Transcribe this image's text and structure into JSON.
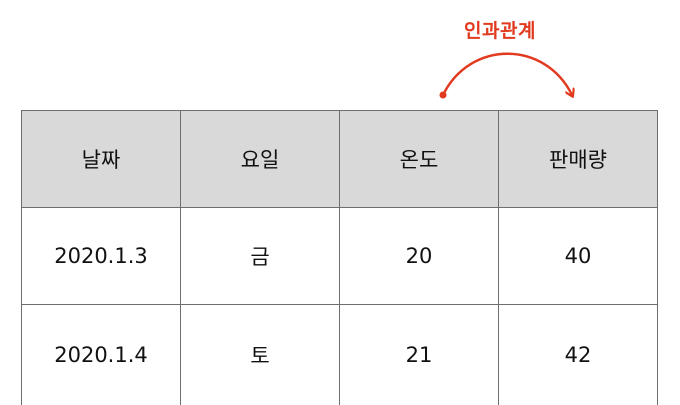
{
  "annotation": {
    "label": "인과관계",
    "color": "#e23a1f"
  },
  "table": {
    "headers": [
      "날짜",
      "요일",
      "온도",
      "판매량"
    ],
    "rows": [
      [
        "2020.1.3",
        "금",
        "20",
        "40"
      ],
      [
        "2020.1.4",
        "토",
        "21",
        "42"
      ]
    ],
    "header_background": "#d9d9d9",
    "border_color": "#6e6e6e"
  }
}
